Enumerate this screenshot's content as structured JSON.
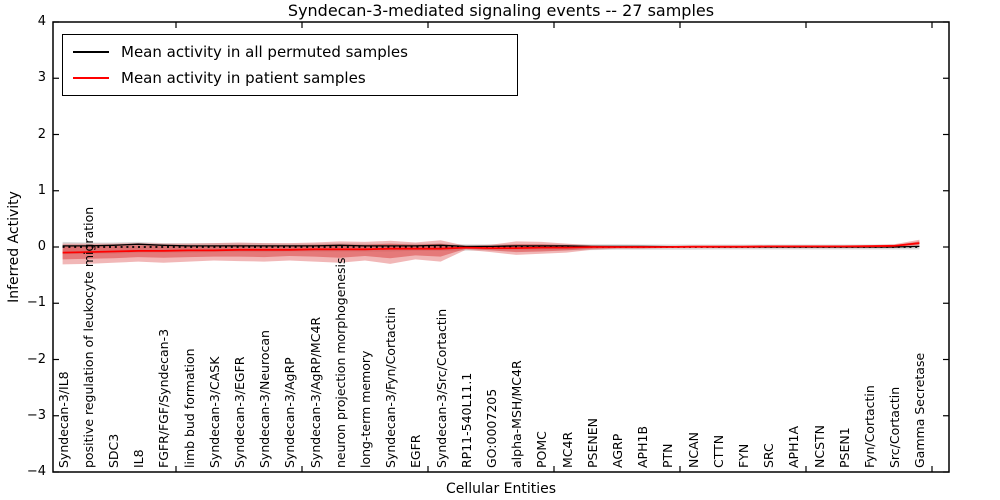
{
  "title": "Syndecan-3-mediated signaling events -- 27 samples",
  "legend": {
    "items": [
      {
        "label": "Mean activity in all permuted samples",
        "color": "#000000"
      },
      {
        "label": "Mean activity in patient samples",
        "color": "#ff0000"
      }
    ]
  },
  "axes": {
    "ytick_labels": [
      "4",
      "3",
      "2",
      "1",
      "0",
      "−1",
      "−2",
      "−3",
      "−4"
    ],
    "ytick_values": [
      4,
      3,
      2,
      1,
      0,
      -1,
      -2,
      -3,
      -4
    ]
  },
  "chart_data": {
    "type": "line",
    "title": "Syndecan-3-mediated signaling events -- 27 samples",
    "xlabel": "Cellular Entities",
    "ylabel": "Inferred Activity",
    "ylim": [
      -4,
      4
    ],
    "yticks": [
      -4,
      -3,
      -2,
      -1,
      0,
      1,
      2,
      3,
      4
    ],
    "xticks": [
      5,
      10,
      15,
      20,
      25,
      30,
      35
    ],
    "grid": false,
    "legend_position": "upper left",
    "categories": [
      "Syndecan-3/IL8",
      "positive regulation of leukocyte migration",
      "SDC3",
      "IL8",
      "FGFR/FGF/Syndecan-3",
      "limb bud formation",
      "Syndecan-3/CASK",
      "Syndecan-3/EGFR",
      "Syndecan-3/Neurocan",
      "Syndecan-3/AgRP",
      "Syndecan-3/AgRP/MC4R",
      "neuron projection morphogenesis",
      "long-term memory",
      "Syndecan-3/Fyn/Cortactin",
      "EGFR",
      "Syndecan-3/Src/Cortactin",
      "RP11-540L11.1",
      "GO:0007205",
      "alpha-MSH/MC4R",
      "POMC",
      "MC4R",
      "PSENEN",
      "AGRP",
      "APH1B",
      "PTN",
      "NCAN",
      "CTTN",
      "FYN",
      "SRC",
      "APH1A",
      "NCSTN",
      "PSEN1",
      "Fyn/Cortactin",
      "Src/Cortactin",
      "Gamma Secretase"
    ],
    "series": [
      {
        "name": "Mean activity in all permuted samples",
        "color": "#000000",
        "values": [
          0.02,
          0.02,
          0.03,
          0.05,
          0.03,
          0.02,
          0.02,
          0.02,
          0.02,
          0.02,
          0.02,
          0.03,
          0.02,
          0.02,
          0.02,
          0.03,
          0.01,
          0.01,
          0.02,
          0.02,
          0.02,
          0.01,
          0.01,
          0.01,
          0.005,
          0.005,
          0,
          0,
          0,
          0,
          0,
          0,
          0,
          0,
          0.01
        ]
      },
      {
        "name": "Mean activity in patient samples",
        "color": "#ff0000",
        "values": [
          -0.1,
          -0.09,
          -0.08,
          -0.07,
          -0.07,
          -0.06,
          -0.06,
          -0.05,
          -0.05,
          -0.05,
          -0.04,
          -0.04,
          -0.04,
          -0.03,
          -0.03,
          -0.03,
          -0.01,
          -0.02,
          -0.02,
          -0.01,
          -0.01,
          0,
          0,
          0,
          0,
          0.005,
          0.005,
          0.005,
          0.01,
          0.01,
          0.01,
          0.01,
          0.015,
          0.02,
          0.07
        ]
      }
    ],
    "bands": [
      {
        "name": "permuted-samples-spread",
        "color": "#999999",
        "opacity": 0.35,
        "upper": [
          0.09,
          0.08,
          0.08,
          0.09,
          0.07,
          0.07,
          0.07,
          0.07,
          0.07,
          0.06,
          0.06,
          0.07,
          0.06,
          0.06,
          0.06,
          0.06,
          0.05,
          0.05,
          0.05,
          0.05,
          0.05,
          0.05,
          0.05,
          0.045,
          0.045,
          0.045,
          0.045,
          0.045,
          0.045,
          0.045,
          0.045,
          0.045,
          0.045,
          0.045,
          0.05
        ],
        "lower": [
          -0.13,
          -0.12,
          -0.12,
          -0.1,
          -0.1,
          -0.1,
          -0.09,
          -0.09,
          -0.09,
          -0.08,
          -0.08,
          -0.08,
          -0.08,
          -0.08,
          -0.07,
          -0.07,
          -0.065,
          -0.06,
          -0.06,
          -0.06,
          -0.06,
          -0.055,
          -0.05,
          -0.05,
          -0.05,
          -0.05,
          -0.045,
          -0.045,
          -0.045,
          -0.045,
          -0.045,
          -0.045,
          -0.045,
          -0.045,
          -0.045
        ]
      },
      {
        "name": "patient-samples-spread-outer",
        "color": "#e05f5f",
        "opacity": 0.45,
        "upper": [
          0.06,
          0.06,
          0.06,
          0.07,
          0.06,
          0.06,
          0.07,
          0.08,
          0.07,
          0.07,
          0.08,
          0.1,
          0.09,
          0.11,
          0.08,
          0.12,
          0.02,
          0.04,
          0.1,
          0.09,
          0.06,
          0.03,
          0.02,
          0.02,
          0.02,
          0.02,
          0.02,
          0.02,
          0.02,
          0.02,
          0.02,
          0.02,
          0.03,
          0.05,
          0.13
        ],
        "lower": [
          -0.31,
          -0.3,
          -0.28,
          -0.26,
          -0.28,
          -0.26,
          -0.24,
          -0.25,
          -0.26,
          -0.24,
          -0.26,
          -0.28,
          -0.24,
          -0.3,
          -0.22,
          -0.26,
          -0.05,
          -0.09,
          -0.14,
          -0.12,
          -0.1,
          -0.05,
          -0.03,
          -0.03,
          -0.02,
          -0.02,
          -0.02,
          -0.02,
          -0.02,
          -0.02,
          -0.02,
          -0.02,
          -0.02,
          -0.02,
          0.03
        ]
      },
      {
        "name": "patient-samples-spread-inner",
        "color": "#d93b3b",
        "opacity": 0.5,
        "upper": [
          0.01,
          0.01,
          0.02,
          0.03,
          0.02,
          0.02,
          0.03,
          0.04,
          0.03,
          0.03,
          0.04,
          0.05,
          0.04,
          0.06,
          0.04,
          0.06,
          0.005,
          0.02,
          0.05,
          0.05,
          0.03,
          0.01,
          0.01,
          0.01,
          0.01,
          0.01,
          0.01,
          0.01,
          0.01,
          0.01,
          0.01,
          0.01,
          0.02,
          0.03,
          0.1
        ],
        "lower": [
          -0.22,
          -0.21,
          -0.2,
          -0.18,
          -0.19,
          -0.18,
          -0.17,
          -0.17,
          -0.18,
          -0.16,
          -0.17,
          -0.19,
          -0.16,
          -0.2,
          -0.15,
          -0.17,
          -0.03,
          -0.06,
          -0.09,
          -0.08,
          -0.06,
          -0.03,
          -0.02,
          -0.02,
          -0.01,
          -0.01,
          -0.01,
          -0.01,
          -0.01,
          -0.01,
          -0.01,
          -0.01,
          -0.01,
          -0.005,
          0.05
        ]
      }
    ],
    "zero_line": {
      "style": "dotted",
      "color": "#000000",
      "y": 0
    }
  }
}
